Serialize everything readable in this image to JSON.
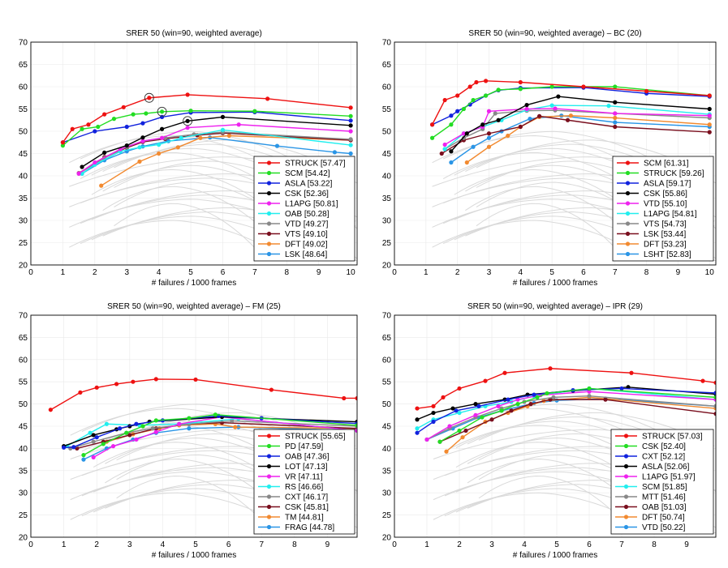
{
  "colors": {
    "red": "#ee1111",
    "green": "#22dd22",
    "blue": "#1122dd",
    "black": "#000000",
    "magenta": "#ee22ee",
    "cyan": "#22eeee",
    "gray": "#888888",
    "darkred": "#7a0f1e",
    "orange": "#f28a30",
    "azure": "#2a95e6",
    "background_curves": "#d9d9d9"
  },
  "chart_data": [
    {
      "type": "line",
      "title": "SRER 50 (win=90, weighted average)",
      "xlabel": "# failures / 1000 frames",
      "ylabel": "",
      "xlim": [
        0,
        10.2
      ],
      "ylim": [
        20,
        70
      ],
      "xticks": [
        "0",
        "1",
        "2",
        "3",
        "4",
        "5",
        "6",
        "7",
        "8",
        "9",
        "10"
      ],
      "yticks": [
        "20",
        "25",
        "30",
        "35",
        "40",
        "45",
        "50",
        "55",
        "60",
        "65",
        "70"
      ],
      "grid": true,
      "legend_position": "bottom-right",
      "series": [
        {
          "name": "STRUCK [57.47]",
          "color": "red",
          "x": [
            1,
            1.3,
            1.8,
            2.3,
            2.9,
            3.7,
            4.9,
            7.4,
            10
          ],
          "y": [
            47.5,
            50.5,
            51.5,
            53.8,
            55.4,
            57.5,
            58.2,
            57.3,
            55.3
          ],
          "marker_x": 3.7,
          "marker_y": 57.5
        },
        {
          "name": "SCM [54.42]",
          "color": "green",
          "x": [
            1,
            1.6,
            2.1,
            2.6,
            3.2,
            3.6,
            4.1,
            5,
            7,
            10
          ],
          "y": [
            46.8,
            50.5,
            51,
            52.8,
            53.8,
            54,
            54.4,
            54.6,
            54.5,
            53.4
          ],
          "marker_x": 4.1,
          "marker_y": 54.4
        },
        {
          "name": "ASLA [53.22]",
          "color": "blue",
          "x": [
            1,
            2,
            3,
            3.5,
            4.1,
            5,
            7,
            10
          ],
          "y": [
            47.5,
            50,
            51,
            51.8,
            53.2,
            54.2,
            54.3,
            52.4
          ]
        },
        {
          "name": "CSK [52.36]",
          "color": "black",
          "x": [
            1.6,
            2.3,
            3,
            3.5,
            4.1,
            4.9,
            6,
            10
          ],
          "y": [
            42,
            45.2,
            46.8,
            48.6,
            50.5,
            52.3,
            53.2,
            51.3
          ],
          "marker_x": 4.9,
          "marker_y": 52.3
        },
        {
          "name": "L1APG [50.81]",
          "color": "magenta",
          "x": [
            1.5,
            2,
            2.8,
            3.5,
            4.1,
            4.9,
            6.5,
            10
          ],
          "y": [
            40.5,
            43,
            46,
            47.8,
            48.5,
            50.8,
            51.5,
            50
          ]
        },
        {
          "name": "OAB [50.28]",
          "color": "cyan",
          "x": [
            1.6,
            2,
            2.8,
            3.4,
            4,
            4.7,
            6,
            10
          ],
          "y": [
            40.5,
            42.5,
            45.5,
            46.4,
            47,
            48.5,
            50.3,
            46.9
          ]
        },
        {
          "name": "VTD [49.27]",
          "color": "gray",
          "x": [
            1.5,
            2.3,
            3,
            3.5,
            4.2,
            5.1,
            6,
            10
          ],
          "y": [
            40.5,
            44,
            46.5,
            47.8,
            48.5,
            49.3,
            49.8,
            48.2
          ]
        },
        {
          "name": "VTS [49.10]",
          "color": "darkred",
          "x": [
            1.5,
            2.3,
            3,
            3.5,
            4.2,
            5.2,
            6,
            10
          ],
          "y": [
            40.6,
            44.2,
            46.3,
            47.6,
            48.3,
            49.1,
            49.6,
            48
          ]
        },
        {
          "name": "DFT [49.02]",
          "color": "orange",
          "x": [
            2.2,
            3.4,
            4,
            4.6,
            5.3,
            6.2,
            10
          ],
          "y": [
            37.8,
            43.2,
            45,
            46.4,
            48.5,
            49,
            48
          ]
        },
        {
          "name": "LSK [48.64]",
          "color": "azure",
          "x": [
            1.6,
            2.3,
            3,
            3.5,
            4.3,
            5.6,
            7.7,
            9.5,
            10
          ],
          "y": [
            40.5,
            43.5,
            45.5,
            46.6,
            47.8,
            48.6,
            46.7,
            45.3,
            45
          ]
        }
      ]
    },
    {
      "type": "line",
      "title": "SRER 50 (win=90, weighted average) – BC (20)",
      "xlabel": "# failures / 1000 frames",
      "ylabel": "",
      "xlim": [
        0,
        10.2
      ],
      "ylim": [
        20,
        70
      ],
      "xticks": [
        "0",
        "1",
        "2",
        "3",
        "4",
        "5",
        "6",
        "7",
        "8",
        "9",
        "10"
      ],
      "yticks": [
        "20",
        "25",
        "30",
        "35",
        "40",
        "45",
        "50",
        "55",
        "60",
        "65",
        "70"
      ],
      "grid": true,
      "legend_position": "bottom-right",
      "series": [
        {
          "name": "SCM [61.31]",
          "color": "red",
          "x": [
            1.2,
            1.6,
            2,
            2.4,
            2.6,
            2.9,
            4,
            6,
            8,
            10
          ],
          "y": [
            51.5,
            57,
            58,
            60,
            61,
            61.3,
            61,
            60,
            59,
            58
          ]
        },
        {
          "name": "STRUCK [59.26]",
          "color": "green",
          "x": [
            1.2,
            1.8,
            2.2,
            2.5,
            2.9,
            3.3,
            4,
            5,
            7,
            10
          ],
          "y": [
            48.5,
            51.5,
            55,
            57,
            58,
            59.3,
            59.5,
            60,
            60,
            58
          ]
        },
        {
          "name": "ASLA [59.17]",
          "color": "blue",
          "x": [
            1.2,
            1.8,
            2,
            2.4,
            2.9,
            3.3,
            4,
            6,
            8,
            10
          ],
          "y": [
            51.5,
            53.5,
            54.5,
            56,
            58,
            59.2,
            59.7,
            59.8,
            58.5,
            57.8
          ]
        },
        {
          "name": "CSK [55.86]",
          "color": "black",
          "x": [
            1.8,
            2.3,
            2.8,
            3.3,
            4.2,
            5.2,
            7,
            10
          ],
          "y": [
            45.5,
            49.5,
            51.5,
            52.5,
            55.9,
            57.8,
            56.5,
            55
          ]
        },
        {
          "name": "VTD [55.10]",
          "color": "magenta",
          "x": [
            1.6,
            2.2,
            2.8,
            3,
            4.2,
            5.1,
            7,
            10
          ],
          "y": [
            47,
            49.5,
            51,
            54.5,
            55,
            55.1,
            54,
            53.5
          ]
        },
        {
          "name": "L1APG [54.81]",
          "color": "cyan",
          "x": [
            1.6,
            2.2,
            2.8,
            3.4,
            4.2,
            5,
            6.8,
            10
          ],
          "y": [
            46,
            49.5,
            51,
            52.5,
            54.8,
            55.8,
            55.7,
            53.8
          ]
        },
        {
          "name": "VTS [54.73]",
          "color": "gray",
          "x": [
            1.6,
            2.2,
            2.8,
            3.2,
            4.2,
            5.1,
            7,
            10
          ],
          "y": [
            46,
            48.5,
            50.5,
            54,
            54.6,
            54.7,
            54,
            53
          ]
        },
        {
          "name": "LSK [53.44]",
          "color": "darkred",
          "x": [
            1.5,
            2.2,
            3,
            4,
            4.6,
            5.5,
            7,
            10
          ],
          "y": [
            45,
            48,
            49.5,
            51,
            53.4,
            52.5,
            51,
            49.8
          ]
        },
        {
          "name": "DFT [53.23]",
          "color": "orange",
          "x": [
            2.3,
            3,
            3.6,
            4,
            4.6,
            5.6,
            7,
            10
          ],
          "y": [
            43,
            46.5,
            49,
            51,
            53.2,
            53.5,
            53,
            51.5
          ]
        },
        {
          "name": "LSHT [52.83]",
          "color": "azure",
          "x": [
            1.8,
            2.5,
            3,
            3.4,
            4.3,
            5.3,
            7,
            10
          ],
          "y": [
            43,
            46.5,
            48.5,
            50,
            52.8,
            53.5,
            52,
            51
          ]
        }
      ]
    },
    {
      "type": "line",
      "title": "SRER 50 (win=90, weighted average) – FM (25)",
      "xlabel": "# failures / 1000 frames",
      "ylabel": "",
      "xlim": [
        0,
        9.9
      ],
      "ylim": [
        20,
        70
      ],
      "xticks": [
        "0",
        "1",
        "2",
        "3",
        "4",
        "5",
        "6",
        "7",
        "8",
        "9"
      ],
      "yticks": [
        "20",
        "25",
        "30",
        "35",
        "40",
        "45",
        "50",
        "55",
        "60",
        "65",
        "70"
      ],
      "grid": true,
      "legend_position": "bottom-right",
      "series": [
        {
          "name": "STRUCK [55.65]",
          "color": "red",
          "x": [
            0.6,
            1.5,
            2,
            2.6,
            3.1,
            3.8,
            5,
            7.3,
            9.5,
            9.9
          ],
          "y": [
            48.7,
            52.6,
            53.7,
            54.5,
            55,
            55.6,
            55.5,
            53.2,
            51.3,
            51.3
          ]
        },
        {
          "name": "PD [47.59]",
          "color": "green",
          "x": [
            1.6,
            2.2,
            2.9,
            3.4,
            3.8,
            4.8,
            5.6,
            9.9
          ],
          "y": [
            38.5,
            41,
            43.5,
            45,
            46.3,
            46.8,
            47.6,
            45.2
          ]
        },
        {
          "name": "OAB [47.36]",
          "color": "blue",
          "x": [
            1,
            1.3,
            2,
            2.7,
            3.2,
            4,
            5.7,
            7,
            9.9
          ],
          "y": [
            40.2,
            40.3,
            42.5,
            44.5,
            45.5,
            46.3,
            47.3,
            46.8,
            45.6
          ]
        },
        {
          "name": "LOT [47.13]",
          "color": "black",
          "x": [
            1,
            1.9,
            2.6,
            3,
            3.6,
            5.8,
            9.9
          ],
          "y": [
            40.5,
            43,
            44.3,
            45,
            46,
            47.1,
            46
          ]
        },
        {
          "name": "VR [47.11]",
          "color": "magenta",
          "x": [
            1.9,
            2.5,
            3.2,
            3.8,
            4.5,
            5.8,
            9.9
          ],
          "y": [
            38,
            40.5,
            42,
            43.7,
            45.5,
            47.1,
            44
          ]
        },
        {
          "name": "RS [46.66]",
          "color": "cyan",
          "x": [
            1.1,
            1.8,
            2.3,
            3.3,
            4.5,
            6.3,
            9.9
          ],
          "y": [
            40.5,
            43.5,
            45.5,
            45.2,
            45.5,
            46.7,
            44
          ]
        },
        {
          "name": "CXT [46.17]",
          "color": "gray",
          "x": [
            1.2,
            1.9,
            2.9,
            3.7,
            4.8,
            6.1,
            9.9
          ],
          "y": [
            40,
            41.5,
            43.5,
            44.5,
            45.5,
            46.2,
            45
          ]
        },
        {
          "name": "CSK [45.81]",
          "color": "darkred",
          "x": [
            1.4,
            2.2,
            3,
            3.8,
            4.8,
            5.8,
            9.9
          ],
          "y": [
            40,
            41.5,
            43,
            44.5,
            45.5,
            45.8,
            44.5
          ]
        },
        {
          "name": "TM [44.81]",
          "color": "orange",
          "x": [
            2.3,
            3.1,
            3.9,
            4.5,
            5.6,
            6.2,
            9.9
          ],
          "y": [
            41.5,
            43.2,
            44.5,
            45.2,
            45.5,
            44.8,
            44.5
          ]
        },
        {
          "name": "FRAG [44.78]",
          "color": "azure",
          "x": [
            1.6,
            2.3,
            3.1,
            3.8,
            4.8,
            6.3,
            9.9
          ],
          "y": [
            37.5,
            40,
            42,
            43.5,
            44.5,
            44.8,
            44
          ]
        }
      ]
    },
    {
      "type": "line",
      "title": "SRER 50 (win=90, weighted average) – IPR (29)",
      "xlabel": "# failures / 1000 frames",
      "ylabel": "",
      "xlim": [
        0,
        9.9
      ],
      "ylim": [
        20,
        70
      ],
      "xticks": [
        "0",
        "1",
        "2",
        "3",
        "4",
        "5",
        "6",
        "7",
        "8",
        "9"
      ],
      "yticks": [
        "20",
        "25",
        "30",
        "35",
        "40",
        "45",
        "50",
        "55",
        "60",
        "65",
        "70"
      ],
      "grid": true,
      "legend_position": "bottom-right",
      "series": [
        {
          "name": "STRUCK [57.03]",
          "color": "red",
          "x": [
            0.7,
            1.2,
            1.5,
            2,
            2.8,
            3.4,
            4.8,
            7.3,
            9.5,
            9.9
          ],
          "y": [
            49,
            49.5,
            51.5,
            53.5,
            55.2,
            57,
            58,
            57,
            55.2,
            54.8
          ]
        },
        {
          "name": "CSK [52.40]",
          "color": "green",
          "x": [
            1.4,
            2,
            2.7,
            3.3,
            3.8,
            4.4,
            4.7,
            6,
            9.9
          ],
          "y": [
            41.5,
            44,
            47,
            48.5,
            50,
            51.5,
            52.4,
            53.5,
            51.5
          ]
        },
        {
          "name": "CXT [52.12]",
          "color": "blue",
          "x": [
            0.7,
            1.2,
            1.9,
            2.6,
            3.5,
            4.3,
            5.5,
            7,
            9.9
          ],
          "y": [
            43.5,
            46,
            48.5,
            49.5,
            51,
            52.1,
            53.1,
            53.5,
            52.5
          ]
        },
        {
          "name": "ASLA [52.06]",
          "color": "black",
          "x": [
            0.7,
            1.2,
            1.8,
            2.5,
            3.4,
            4.1,
            5.5,
            7.2,
            9.9
          ],
          "y": [
            46.5,
            48,
            49,
            50,
            51,
            52.1,
            53,
            53.8,
            52.2
          ]
        },
        {
          "name": "L1APG [51.97]",
          "color": "magenta",
          "x": [
            1,
            1.7,
            2.5,
            3.2,
            3.8,
            4.5,
            6,
            9.9
          ],
          "y": [
            42,
            45,
            47.5,
            49.5,
            51,
            52,
            52.8,
            51
          ]
        },
        {
          "name": "SCM [51.85]",
          "color": "cyan",
          "x": [
            0.7,
            1.2,
            2,
            2.8,
            3.6,
            4.3,
            6,
            9.9
          ],
          "y": [
            44.5,
            46.5,
            48,
            49.5,
            50.5,
            51.8,
            53.5,
            51
          ]
        },
        {
          "name": "MTT [51.46]",
          "color": "gray",
          "x": [
            1,
            1.7,
            2.5,
            3.3,
            4,
            4.9,
            6,
            9.9
          ],
          "y": [
            42,
            44.5,
            47,
            49,
            50.5,
            51.5,
            51.8,
            49.5
          ]
        },
        {
          "name": "OAB [51.03]",
          "color": "darkred",
          "x": [
            1.4,
            2.2,
            3,
            3.6,
            4.2,
            4.8,
            6.5,
            9.9
          ],
          "y": [
            41.5,
            44,
            46.5,
            48.5,
            50,
            51,
            51,
            47.8
          ]
        },
        {
          "name": "DFT [50.74]",
          "color": "orange",
          "x": [
            1.6,
            2.1,
            2.8,
            3.5,
            4.1,
            4.6,
            6,
            9.9
          ],
          "y": [
            39.3,
            42.5,
            46,
            48,
            49.5,
            50.7,
            51.5,
            49
          ]
        },
        {
          "name": "VTD [50.22]",
          "color": "azure",
          "x": [
            1,
            1.8,
            2.6,
            3.3,
            4.3,
            5,
            6.5,
            9.9
          ],
          "y": [
            42,
            44.5,
            47,
            48.5,
            50.2,
            50.8,
            51.2,
            49.5
          ]
        }
      ]
    }
  ]
}
